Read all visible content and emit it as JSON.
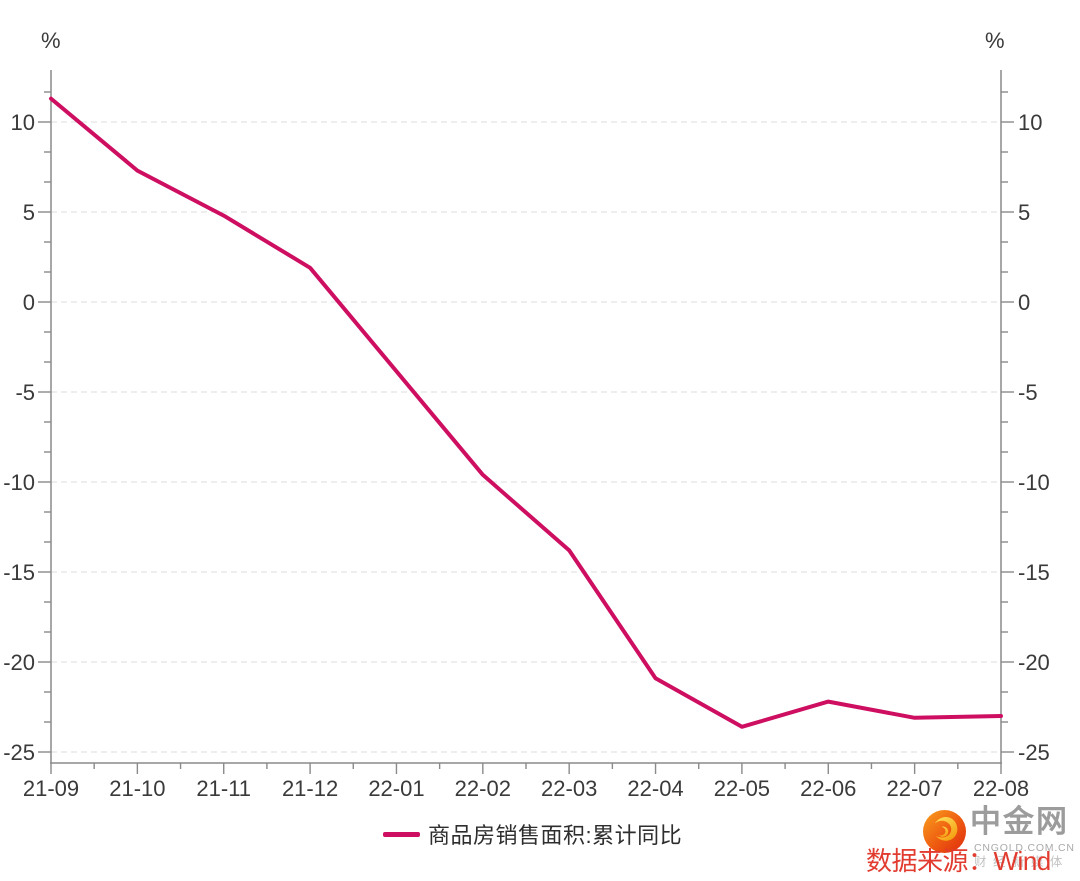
{
  "units": {
    "left": "%",
    "right": "%"
  },
  "chart_data": {
    "type": "line",
    "title": "",
    "xlabel": "",
    "ylabel": "%",
    "categories": [
      "21-09",
      "21-10",
      "21-11",
      "21-12",
      "22-01",
      "22-02",
      "22-03",
      "22-04",
      "22-05",
      "22-06",
      "22-07",
      "22-08"
    ],
    "series": [
      {
        "name": "商品房销售面积:累计同比",
        "color": "#ce0f61",
        "values": [
          11.3,
          7.3,
          4.8,
          1.9,
          null,
          -9.6,
          -13.8,
          -20.9,
          -23.6,
          -22.2,
          -23.1,
          -23.0
        ]
      }
    ],
    "y_ticks": [
      10,
      5,
      0,
      -5,
      -10,
      -15,
      -20,
      -25
    ],
    "ylim": [
      -25.6,
      12.9
    ],
    "grid": "horizontal-dashed",
    "legend_position": "bottom-center",
    "axis_color": "#8a8a8a",
    "grid_color": "#e3e3e3",
    "tick_label_color": "#3a3a3a"
  },
  "legend": {
    "label": "商品房销售面积:累计同比"
  },
  "footer": {
    "source_text": "数据来源：Wind",
    "logo": {
      "title": "中金网",
      "domain": "CNGOLD.COM.CN",
      "tagline": "财 经 新 媒 体"
    }
  }
}
